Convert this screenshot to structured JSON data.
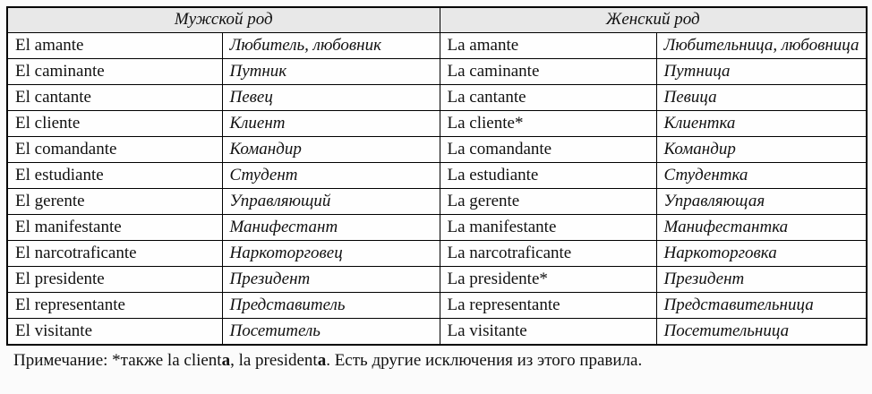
{
  "table": {
    "headers": [
      {
        "label": "Мужской род"
      },
      {
        "label": "Женский род"
      }
    ],
    "rows": [
      {
        "m_es": "El amante",
        "m_ru": "Любитель, любовник",
        "f_es": "La amante",
        "f_ru": "Любительница, любовница"
      },
      {
        "m_es": "El caminante",
        "m_ru": "Путник",
        "f_es": "La caminante",
        "f_ru": "Путница"
      },
      {
        "m_es": "El cantante",
        "m_ru": "Певец",
        "f_es": "La cantante",
        "f_ru": "Певица"
      },
      {
        "m_es": "El cliente",
        "m_ru": "Клиент",
        "f_es": "La cliente*",
        "f_ru": "Клиентка"
      },
      {
        "m_es": "El comandante",
        "m_ru": "Командир",
        "f_es": "La comandante",
        "f_ru": "Командир"
      },
      {
        "m_es": "El estudiante",
        "m_ru": "Студент",
        "f_es": "La estudiante",
        "f_ru": "Студентка"
      },
      {
        "m_es": "El gerente",
        "m_ru": "Управляющий",
        "f_es": "La gerente",
        "f_ru": "Управляющая"
      },
      {
        "m_es": "El manifestante",
        "m_ru": "Манифестант",
        "f_es": "La manifestante",
        "f_ru": "Манифестантка"
      },
      {
        "m_es": "El narcotraficante",
        "m_ru": "Наркоторговец",
        "f_es": "La narcotraficante",
        "f_ru": "Наркоторговка"
      },
      {
        "m_es": "El presidente",
        "m_ru": "Президент",
        "f_es": "La presidente*",
        "f_ru": "Президент"
      },
      {
        "m_es": "El representante",
        "m_ru": "Представитель",
        "f_es": "La representante",
        "f_ru": "Представительница"
      },
      {
        "m_es": "El visitante",
        "m_ru": "Посетитель",
        "f_es": "La visitante",
        "f_ru": "Посетительница"
      }
    ]
  },
  "note": {
    "segments": [
      {
        "text": "Примечание: *также la client",
        "bold": false
      },
      {
        "text": "a",
        "bold": true
      },
      {
        "text": ", la president",
        "bold": false
      },
      {
        "text": "a",
        "bold": true
      },
      {
        "text": ". Есть другие исключения из этого правила.",
        "bold": false
      }
    ]
  },
  "colors": {
    "header_background": "#e8e8e8",
    "cell_background": "#fefefe",
    "border": "#000000",
    "text": "#111111"
  }
}
